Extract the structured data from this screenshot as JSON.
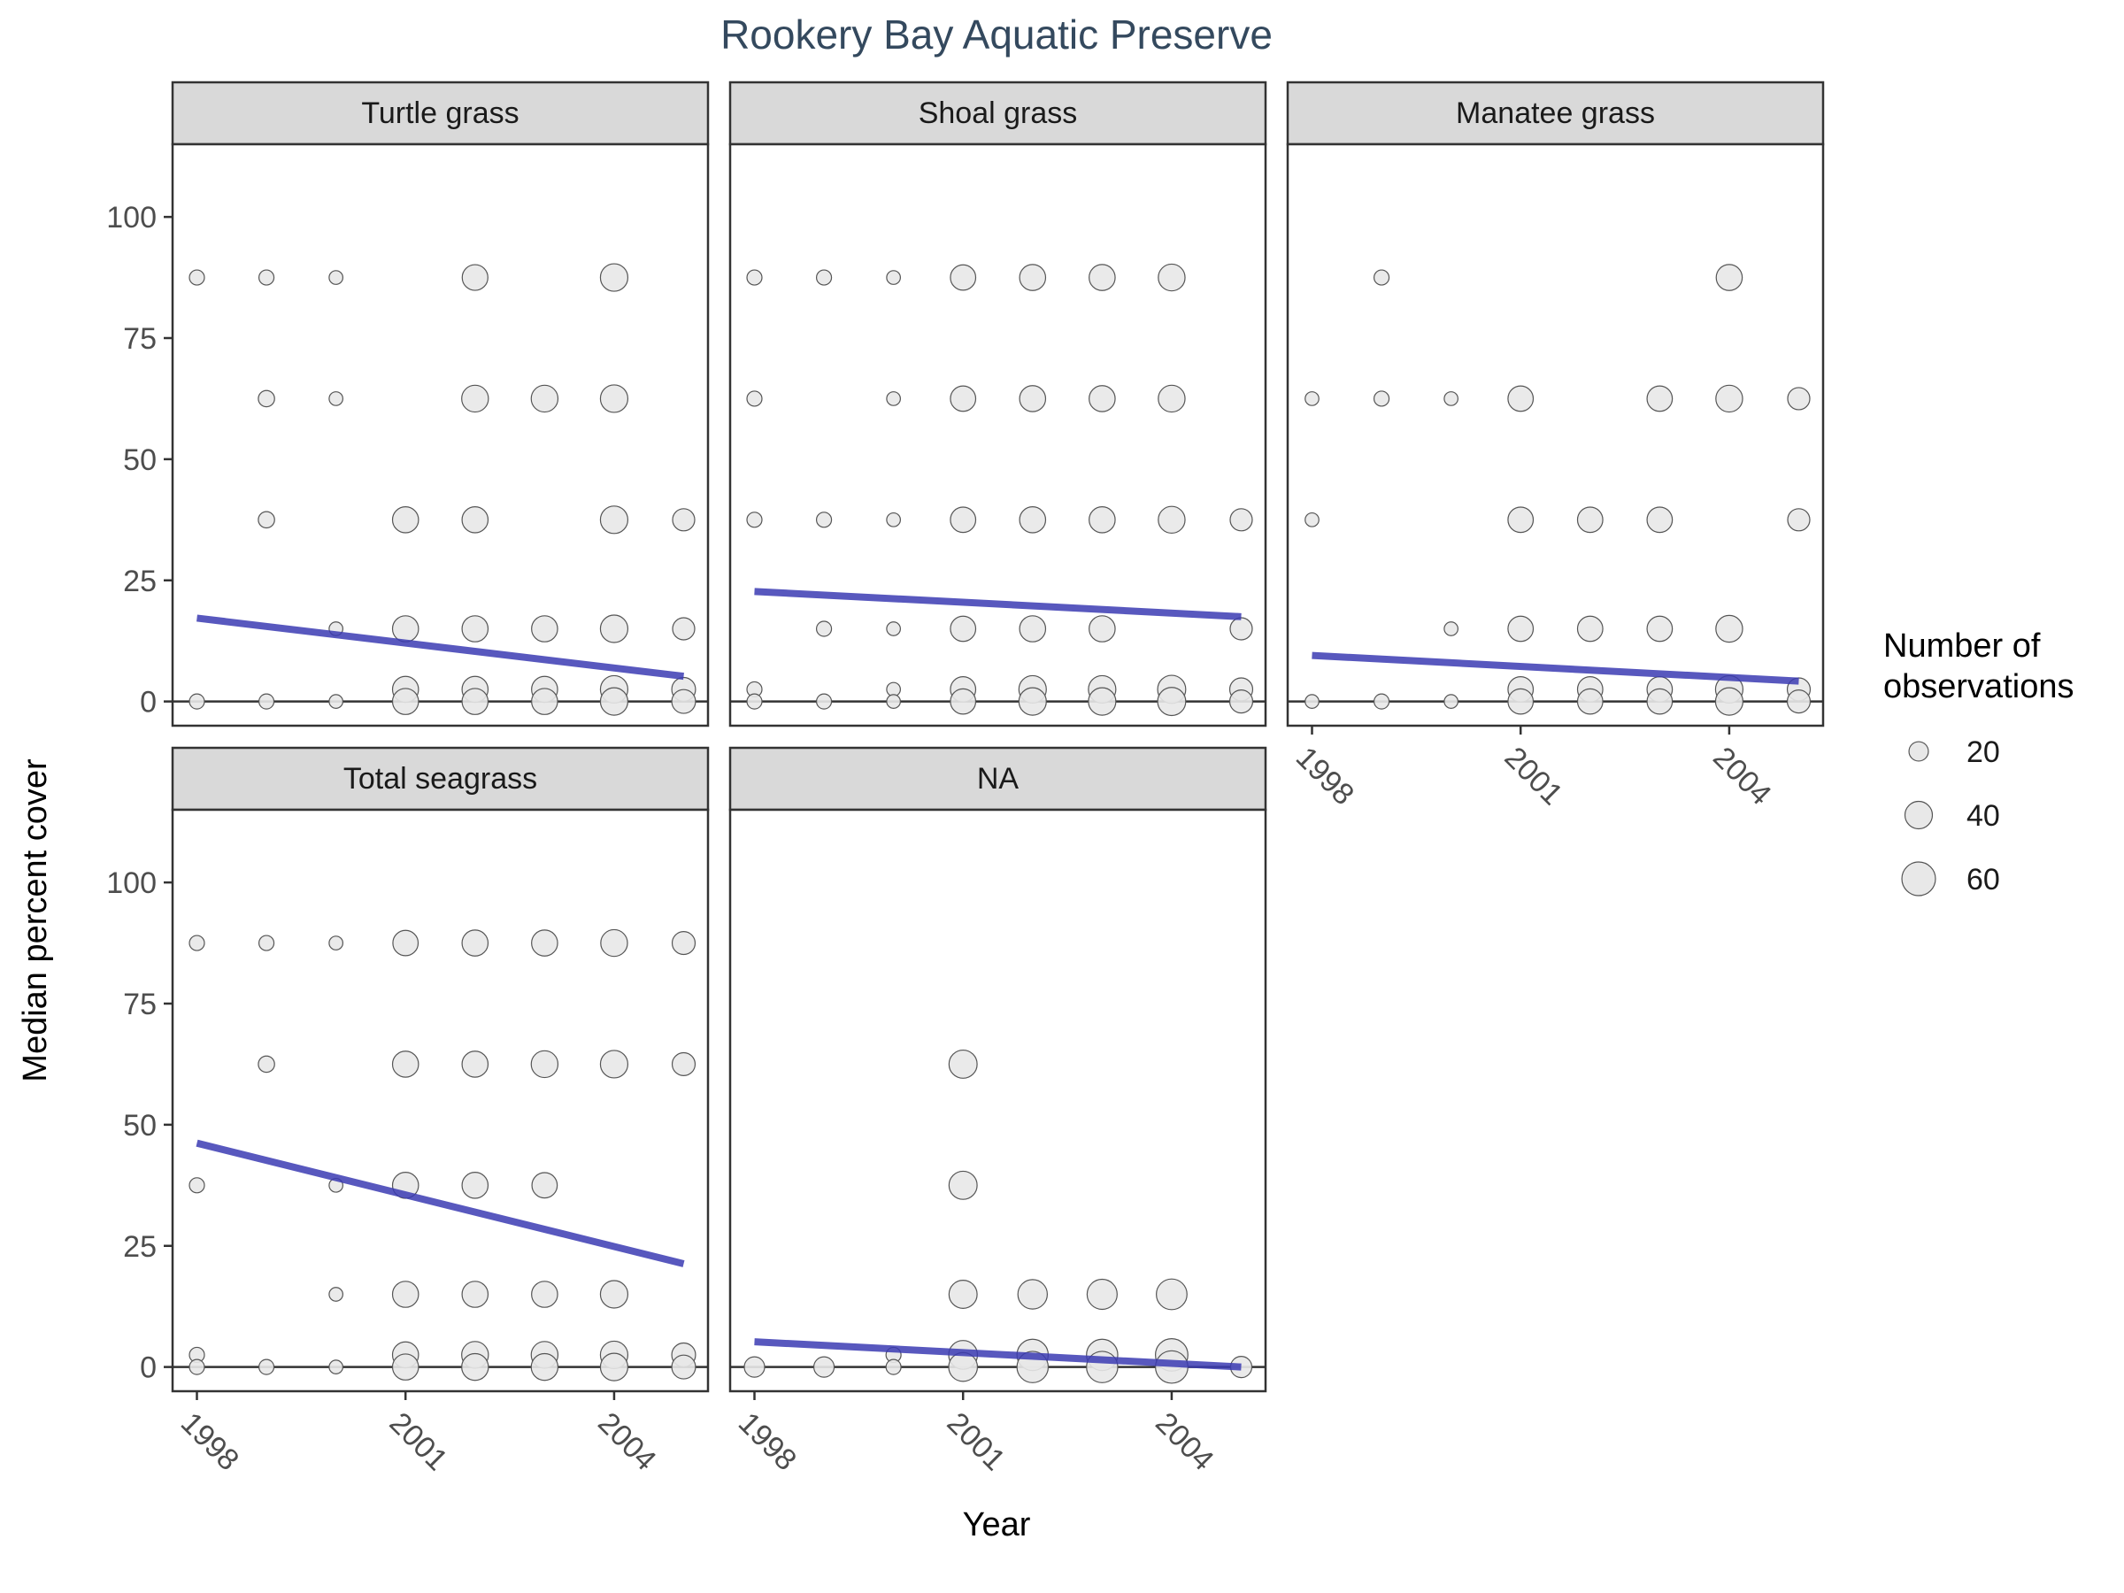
{
  "chart_data": {
    "type": "scatter",
    "title": "Rookery Bay Aquatic Preserve",
    "xlabel": "Year",
    "ylabel": "Median percent cover",
    "x_ticks": [
      "1998",
      "2001",
      "2004"
    ],
    "y_ticks": [
      "0",
      "25",
      "50",
      "75",
      "100"
    ],
    "xlim": [
      1997.65,
      2005.35
    ],
    "ylim": [
      -5,
      115
    ],
    "grid": false,
    "legend": {
      "title_lines": [
        "Number of",
        "observations"
      ],
      "position": "right",
      "entries": [
        {
          "label": "20",
          "size": 20
        },
        {
          "label": "40",
          "size": 40
        },
        {
          "label": "60",
          "size": 60
        }
      ]
    },
    "colors": {
      "point_fill": "#e8e8e8",
      "point_stroke": "#555555",
      "trend_line": "#3b3bb3",
      "strip_fill": "#d9d9d9",
      "title": "#34495e"
    },
    "panels": [
      {
        "name": "Turtle grass",
        "trend": [
          [
            1998,
            17.2
          ],
          [
            2005,
            5.2
          ]
        ],
        "points": [
          [
            1998,
            87.5,
            12
          ],
          [
            1999,
            87.5,
            12
          ],
          [
            2000,
            87.5,
            10
          ],
          [
            2002,
            87.5,
            35
          ],
          [
            2004,
            87.5,
            40
          ],
          [
            1999,
            62.5,
            14
          ],
          [
            2000,
            62.5,
            10
          ],
          [
            2002,
            62.5,
            38
          ],
          [
            2003,
            62.5,
            38
          ],
          [
            2004,
            62.5,
            40
          ],
          [
            1999,
            37.5,
            14
          ],
          [
            2001,
            37.5,
            36
          ],
          [
            2002,
            37.5,
            36
          ],
          [
            2004,
            37.5,
            40
          ],
          [
            2005,
            37.5,
            26
          ],
          [
            2000,
            15,
            10
          ],
          [
            2001,
            15,
            36
          ],
          [
            2002,
            15,
            36
          ],
          [
            2003,
            15,
            36
          ],
          [
            2004,
            15,
            40
          ],
          [
            2005,
            15,
            26
          ],
          [
            2001,
            2.5,
            36
          ],
          [
            2002,
            2.5,
            36
          ],
          [
            2003,
            2.5,
            36
          ],
          [
            2004,
            2.5,
            40
          ],
          [
            2005,
            2.5,
            30
          ],
          [
            1998,
            0,
            12
          ],
          [
            1999,
            0,
            12
          ],
          [
            2000,
            0,
            10
          ],
          [
            2001,
            0,
            36
          ],
          [
            2002,
            0,
            36
          ],
          [
            2003,
            0,
            36
          ],
          [
            2004,
            0,
            40
          ],
          [
            2005,
            0,
            30
          ]
        ]
      },
      {
        "name": "Shoal grass",
        "trend": [
          [
            1998,
            22.7
          ],
          [
            2005,
            17.5
          ]
        ],
        "points": [
          [
            1998,
            87.5,
            12
          ],
          [
            1999,
            87.5,
            12
          ],
          [
            2000,
            87.5,
            10
          ],
          [
            2001,
            87.5,
            34
          ],
          [
            2002,
            87.5,
            36
          ],
          [
            2003,
            87.5,
            36
          ],
          [
            2004,
            87.5,
            38
          ],
          [
            1998,
            62.5,
            12
          ],
          [
            2000,
            62.5,
            10
          ],
          [
            2001,
            62.5,
            34
          ],
          [
            2002,
            62.5,
            36
          ],
          [
            2003,
            62.5,
            36
          ],
          [
            2004,
            62.5,
            38
          ],
          [
            1998,
            37.5,
            12
          ],
          [
            1999,
            37.5,
            12
          ],
          [
            2000,
            37.5,
            10
          ],
          [
            2001,
            37.5,
            34
          ],
          [
            2002,
            37.5,
            36
          ],
          [
            2003,
            37.5,
            36
          ],
          [
            2004,
            37.5,
            38
          ],
          [
            2005,
            37.5,
            26
          ],
          [
            1999,
            15,
            12
          ],
          [
            2000,
            15,
            10
          ],
          [
            2001,
            15,
            34
          ],
          [
            2002,
            15,
            36
          ],
          [
            2003,
            15,
            36
          ],
          [
            2005,
            15,
            26
          ],
          [
            1998,
            2.5,
            12
          ],
          [
            2000,
            2.5,
            10
          ],
          [
            2001,
            2.5,
            34
          ],
          [
            2002,
            2.5,
            40
          ],
          [
            2003,
            2.5,
            40
          ],
          [
            2004,
            2.5,
            42
          ],
          [
            2005,
            2.5,
            28
          ],
          [
            1998,
            0,
            12
          ],
          [
            1999,
            0,
            12
          ],
          [
            2000,
            0,
            10
          ],
          [
            2001,
            0,
            34
          ],
          [
            2002,
            0,
            40
          ],
          [
            2003,
            0,
            40
          ],
          [
            2004,
            0,
            42
          ],
          [
            2005,
            0,
            28
          ]
        ]
      },
      {
        "name": "Manatee grass",
        "trend": [
          [
            1998,
            9.5
          ],
          [
            2005,
            4.2
          ]
        ],
        "points": [
          [
            1999,
            87.5,
            12
          ],
          [
            2004,
            87.5,
            36
          ],
          [
            1998,
            62.5,
            10
          ],
          [
            1999,
            62.5,
            12
          ],
          [
            2000,
            62.5,
            10
          ],
          [
            2001,
            62.5,
            34
          ],
          [
            2003,
            62.5,
            34
          ],
          [
            2004,
            62.5,
            38
          ],
          [
            2005,
            62.5,
            26
          ],
          [
            1998,
            37.5,
            10
          ],
          [
            2001,
            37.5,
            34
          ],
          [
            2002,
            37.5,
            34
          ],
          [
            2003,
            37.5,
            34
          ],
          [
            2005,
            37.5,
            26
          ],
          [
            2000,
            15,
            10
          ],
          [
            2001,
            15,
            34
          ],
          [
            2002,
            15,
            34
          ],
          [
            2003,
            15,
            34
          ],
          [
            2004,
            15,
            38
          ],
          [
            2001,
            2.5,
            34
          ],
          [
            2002,
            2.5,
            34
          ],
          [
            2003,
            2.5,
            34
          ],
          [
            2004,
            2.5,
            40
          ],
          [
            2005,
            2.5,
            28
          ],
          [
            1998,
            0,
            10
          ],
          [
            1999,
            0,
            12
          ],
          [
            2000,
            0,
            10
          ],
          [
            2001,
            0,
            34
          ],
          [
            2002,
            0,
            34
          ],
          [
            2003,
            0,
            34
          ],
          [
            2004,
            0,
            40
          ],
          [
            2005,
            0,
            28
          ]
        ]
      },
      {
        "name": "Total seagrass",
        "trend": [
          [
            1998,
            46.2
          ],
          [
            2005,
            21.3
          ]
        ],
        "points": [
          [
            1998,
            87.5,
            12
          ],
          [
            1999,
            87.5,
            12
          ],
          [
            2000,
            87.5,
            10
          ],
          [
            2001,
            87.5,
            34
          ],
          [
            2002,
            87.5,
            36
          ],
          [
            2003,
            87.5,
            36
          ],
          [
            2004,
            87.5,
            38
          ],
          [
            2005,
            87.5,
            28
          ],
          [
            1999,
            62.5,
            14
          ],
          [
            2001,
            62.5,
            36
          ],
          [
            2002,
            62.5,
            36
          ],
          [
            2003,
            62.5,
            38
          ],
          [
            2004,
            62.5,
            40
          ],
          [
            2005,
            62.5,
            28
          ],
          [
            1998,
            37.5,
            12
          ],
          [
            2000,
            37.5,
            10
          ],
          [
            2001,
            37.5,
            36
          ],
          [
            2002,
            37.5,
            36
          ],
          [
            2003,
            37.5,
            34
          ],
          [
            2000,
            15,
            10
          ],
          [
            2001,
            15,
            36
          ],
          [
            2002,
            15,
            36
          ],
          [
            2003,
            15,
            36
          ],
          [
            2004,
            15,
            40
          ],
          [
            1998,
            2.5,
            12
          ],
          [
            2001,
            2.5,
            36
          ],
          [
            2002,
            2.5,
            38
          ],
          [
            2003,
            2.5,
            38
          ],
          [
            2004,
            2.5,
            40
          ],
          [
            2005,
            2.5,
            30
          ],
          [
            1998,
            0,
            12
          ],
          [
            1999,
            0,
            12
          ],
          [
            2000,
            0,
            10
          ],
          [
            2001,
            0,
            36
          ],
          [
            2002,
            0,
            38
          ],
          [
            2003,
            0,
            38
          ],
          [
            2004,
            0,
            40
          ],
          [
            2005,
            0,
            30
          ]
        ]
      },
      {
        "name": "NA",
        "trend": [
          [
            1998,
            5.2
          ],
          [
            2005,
            0.0
          ]
        ],
        "points": [
          [
            2001,
            62.5,
            42
          ],
          [
            2001,
            37.5,
            42
          ],
          [
            2001,
            15,
            42
          ],
          [
            2002,
            15,
            46
          ],
          [
            2003,
            15,
            48
          ],
          [
            2004,
            15,
            50
          ],
          [
            2000,
            2.5,
            12
          ],
          [
            2001,
            2.5,
            44
          ],
          [
            2002,
            2.5,
            52
          ],
          [
            2003,
            2.5,
            52
          ],
          [
            2004,
            2.5,
            56
          ],
          [
            1998,
            0,
            22
          ],
          [
            1999,
            0,
            22
          ],
          [
            2000,
            0,
            12
          ],
          [
            2001,
            0,
            44
          ],
          [
            2002,
            0,
            52
          ],
          [
            2003,
            0,
            52
          ],
          [
            2004,
            0,
            56
          ],
          [
            2005,
            0,
            24
          ]
        ]
      }
    ]
  }
}
